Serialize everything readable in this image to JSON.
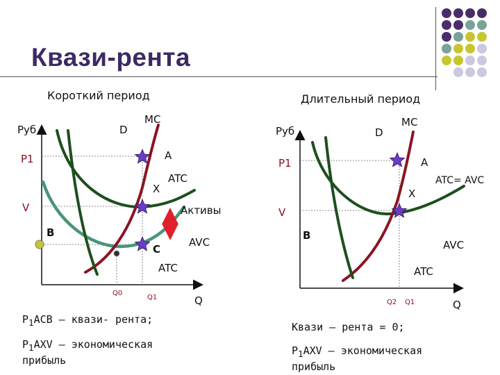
{
  "title": "Квази-рента",
  "decor_colors": {
    "purple": "#4a2c6a",
    "teal": "#79a29a",
    "olive": "#c7c631",
    "lavender": "#cbc8df"
  },
  "short_run": {
    "heading": "Короткий период",
    "y_axis": "Руб",
    "x_axis": "Q",
    "curves": {
      "d": "D",
      "mc": "MC",
      "atc_top": "ATC",
      "atc_bottom": "ATC",
      "avc": "AVC"
    },
    "points": {
      "a": "A",
      "x": "X",
      "b": "B",
      "c": "C"
    },
    "levels": {
      "p1": "Р1",
      "v": "V"
    },
    "quantities": {
      "q0": "Q0",
      "q1": "Q1"
    },
    "arrow_label": "Активы",
    "caption1_prefix": "Р",
    "caption1_sub": "1",
    "caption1_rest": "ACB – квази- рента;",
    "caption2_prefix": "Р",
    "caption2_sub": "1",
    "caption2_rest": "AXV – экономическая",
    "caption2_line2": "прибыль"
  },
  "long_run": {
    "heading": "Длительный период",
    "y_axis": "Руб",
    "x_axis": "Q",
    "curves": {
      "d": "D",
      "mc": "MC",
      "atc_avc": "ATC= AVC",
      "avc": "AVC",
      "atc": "ATC"
    },
    "points": {
      "a": "A",
      "x": "X",
      "b": "B"
    },
    "levels": {
      "p1": "Р1",
      "v": "V"
    },
    "quantities": {
      "q2": "Q2",
      "q1": "Q1"
    },
    "caption1": "Квази – рента = 0;",
    "caption2_prefix": "Р",
    "caption2_sub": "1",
    "caption2_rest": "AXV – экономическая",
    "caption2_line2": "прибыль"
  },
  "colors": {
    "demand": "#1e4f1e",
    "mc": "#8a1424",
    "avc": "#4a9478",
    "atc": "#1e4f1e",
    "star": "#6a3cc8",
    "arrow": "#e0202a"
  }
}
